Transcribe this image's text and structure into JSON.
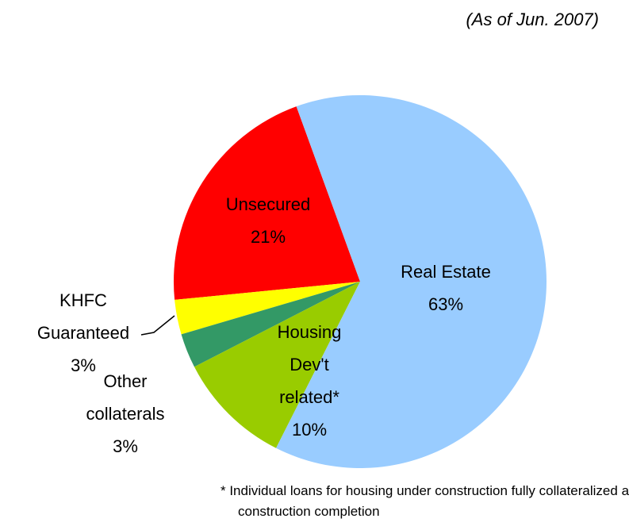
{
  "chart_data": {
    "type": "pie",
    "subtitle": "(As of Jun. 2007)",
    "categories": [
      "Real Estate",
      "Housing Dev't related*",
      "Other collaterals",
      "KHFC Guaranteed",
      "Unsecured"
    ],
    "values": [
      63,
      10,
      3,
      3,
      21
    ],
    "value_labels": [
      "63%",
      "10%",
      "3%",
      "3%",
      "21%"
    ],
    "colors": [
      "#99ccff",
      "#99cc00",
      "#339966",
      "#ffff00",
      "#ff0000"
    ],
    "footnote": "* Individual loans for housing under construction fully collateralized at construction completion"
  }
}
